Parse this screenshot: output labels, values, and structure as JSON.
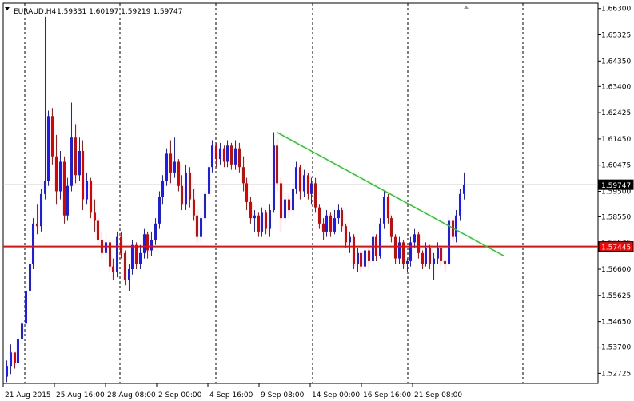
{
  "header": {
    "symbol": "EURAUD,H4",
    "ohlc": "1.59331 1.60197 1.59219 1.59747"
  },
  "icons": {
    "menu": "triangle-down-icon",
    "corner": "triangle-up-icon"
  },
  "price_axis": {
    "ticks": [
      "1.66300",
      "1.65325",
      "1.64350",
      "1.63400",
      "1.62425",
      "1.61450",
      "1.60475",
      "1.59500",
      "1.58550",
      "1.57575",
      "1.56600",
      "1.55625",
      "1.54650",
      "1.53700",
      "1.52725"
    ]
  },
  "time_axis": {
    "labels": [
      "21 Aug 2015",
      "25 Aug 16:00",
      "28 Aug 08:00",
      "2 Sep 00:00",
      "4 Sep 16:00",
      "9 Sep 08:00",
      "14 Sep 00:00",
      "16 Sep 16:00",
      "21 Sep 08:00"
    ]
  },
  "markers": {
    "current_price": "1.59747",
    "support_price": "1.57445"
  },
  "colors": {
    "bull": "#1a1aff",
    "bear": "#e00000",
    "support": "#ff0000",
    "trendline": "#22cc22",
    "grid": "#000000"
  },
  "chart_data": {
    "type": "candlestick",
    "title": "EURAUD,H4",
    "ylim": [
      1.5235,
      1.665
    ],
    "horizontal_lines": [
      {
        "kind": "support",
        "y": 1.57445
      },
      {
        "kind": "current",
        "y": 1.59747
      }
    ],
    "trendline": {
      "from": [
        "9 Sep",
        1.617
      ],
      "to": [
        "23 Sep",
        1.571
      ]
    },
    "candles": [
      [
        1.526,
        1.532,
        1.524,
        1.53
      ],
      [
        1.53,
        1.538,
        1.527,
        1.535
      ],
      [
        1.535,
        1.534,
        1.529,
        1.531
      ],
      [
        1.531,
        1.542,
        1.53,
        1.54
      ],
      [
        1.54,
        1.548,
        1.538,
        1.546
      ],
      [
        1.546,
        1.56,
        1.544,
        1.558
      ],
      [
        1.558,
        1.57,
        1.556,
        1.568
      ],
      [
        1.568,
        1.585,
        1.566,
        1.583
      ],
      [
        1.583,
        1.59,
        1.579,
        1.582
      ],
      [
        1.582,
        1.596,
        1.58,
        1.594
      ],
      [
        1.594,
        1.66,
        1.592,
        1.599
      ],
      [
        1.599,
        1.625,
        1.597,
        1.623
      ],
      [
        1.623,
        1.626,
        1.605,
        1.608
      ],
      [
        1.608,
        1.616,
        1.59,
        1.595
      ],
      [
        1.595,
        1.61,
        1.592,
        1.606
      ],
      [
        1.606,
        1.608,
        1.583,
        1.586
      ],
      [
        1.586,
        1.6,
        1.584,
        1.597
      ],
      [
        1.597,
        1.628,
        1.595,
        1.615
      ],
      [
        1.615,
        1.62,
        1.598,
        1.601
      ],
      [
        1.601,
        1.615,
        1.599,
        1.61
      ],
      [
        1.61,
        1.614,
        1.588,
        1.592
      ],
      [
        1.592,
        1.602,
        1.59,
        1.599
      ],
      [
        1.599,
        1.6,
        1.585,
        1.587
      ],
      [
        1.587,
        1.592,
        1.58,
        1.584
      ],
      [
        1.584,
        1.585,
        1.575,
        1.577
      ],
      [
        1.577,
        1.58,
        1.57,
        1.572
      ],
      [
        1.572,
        1.579,
        1.568,
        1.576
      ],
      [
        1.576,
        1.577,
        1.565,
        1.567
      ],
      [
        1.567,
        1.57,
        1.562,
        1.565
      ],
      [
        1.565,
        1.58,
        1.563,
        1.578
      ],
      [
        1.578,
        1.58,
        1.57,
        1.572
      ],
      [
        1.572,
        1.573,
        1.56,
        1.562
      ],
      [
        1.562,
        1.568,
        1.558,
        1.566
      ],
      [
        1.566,
        1.577,
        1.564,
        1.575
      ],
      [
        1.575,
        1.576,
        1.566,
        1.568
      ],
      [
        1.568,
        1.575,
        1.566,
        1.572
      ],
      [
        1.572,
        1.581,
        1.57,
        1.579
      ],
      [
        1.579,
        1.58,
        1.57,
        1.573
      ],
      [
        1.573,
        1.58,
        1.571,
        1.577
      ],
      [
        1.577,
        1.585,
        1.575,
        1.583
      ],
      [
        1.583,
        1.595,
        1.581,
        1.593
      ],
      [
        1.593,
        1.601,
        1.59,
        1.599
      ],
      [
        1.599,
        1.611,
        1.597,
        1.609
      ],
      [
        1.609,
        1.614,
        1.598,
        1.602
      ],
      [
        1.602,
        1.615,
        1.6,
        1.606
      ],
      [
        1.606,
        1.607,
        1.595,
        1.597
      ],
      [
        1.597,
        1.601,
        1.588,
        1.59
      ],
      [
        1.59,
        1.605,
        1.588,
        1.602
      ],
      [
        1.602,
        1.604,
        1.589,
        1.592
      ],
      [
        1.592,
        1.596,
        1.584,
        1.586
      ],
      [
        1.586,
        1.588,
        1.576,
        1.578
      ],
      [
        1.578,
        1.587,
        1.576,
        1.585
      ],
      [
        1.585,
        1.596,
        1.583,
        1.594
      ],
      [
        1.594,
        1.606,
        1.592,
        1.604
      ],
      [
        1.604,
        1.614,
        1.602,
        1.612
      ],
      [
        1.612,
        1.613,
        1.604,
        1.607
      ],
      [
        1.607,
        1.613,
        1.605,
        1.611
      ],
      [
        1.611,
        1.612,
        1.604,
        1.606
      ],
      [
        1.606,
        1.614,
        1.604,
        1.612
      ],
      [
        1.612,
        1.613,
        1.603,
        1.605
      ],
      [
        1.605,
        1.614,
        1.603,
        1.611
      ],
      [
        1.611,
        1.613,
        1.602,
        1.604
      ],
      [
        1.604,
        1.608,
        1.595,
        1.598
      ],
      [
        1.598,
        1.6,
        1.588,
        1.591
      ],
      [
        1.591,
        1.593,
        1.583,
        1.585
      ],
      [
        1.585,
        1.588,
        1.58,
        1.586
      ],
      [
        1.586,
        1.587,
        1.578,
        1.58
      ],
      [
        1.58,
        1.589,
        1.578,
        1.587
      ],
      [
        1.587,
        1.588,
        1.579,
        1.581
      ],
      [
        1.581,
        1.59,
        1.578,
        1.588
      ],
      [
        1.588,
        1.617,
        1.587,
        1.612
      ],
      [
        1.612,
        1.615,
        1.595,
        1.598
      ],
      [
        1.598,
        1.6,
        1.58,
        1.585
      ],
      [
        1.585,
        1.595,
        1.583,
        1.592
      ],
      [
        1.592,
        1.594,
        1.585,
        1.588
      ],
      [
        1.588,
        1.598,
        1.586,
        1.596
      ],
      [
        1.596,
        1.606,
        1.594,
        1.604
      ],
      [
        1.604,
        1.605,
        1.592,
        1.595
      ],
      [
        1.595,
        1.603,
        1.593,
        1.601
      ],
      [
        1.601,
        1.602,
        1.592,
        1.594
      ],
      [
        1.594,
        1.6,
        1.59,
        1.598
      ],
      [
        1.598,
        1.6,
        1.587,
        1.589
      ],
      [
        1.589,
        1.59,
        1.581,
        1.583
      ],
      [
        1.583,
        1.585,
        1.577,
        1.58
      ],
      [
        1.58,
        1.588,
        1.578,
        1.586
      ],
      [
        1.586,
        1.587,
        1.578,
        1.58
      ],
      [
        1.58,
        1.588,
        1.579,
        1.585
      ],
      [
        1.585,
        1.59,
        1.583,
        1.588
      ],
      [
        1.588,
        1.589,
        1.58,
        1.582
      ],
      [
        1.582,
        1.583,
        1.574,
        1.576
      ],
      [
        1.576,
        1.58,
        1.572,
        1.578
      ],
      [
        1.578,
        1.579,
        1.566,
        1.568
      ],
      [
        1.568,
        1.574,
        1.565,
        1.572
      ],
      [
        1.572,
        1.573,
        1.565,
        1.567
      ],
      [
        1.567,
        1.575,
        1.566,
        1.573
      ],
      [
        1.573,
        1.574,
        1.566,
        1.569
      ],
      [
        1.569,
        1.58,
        1.567,
        1.578
      ],
      [
        1.578,
        1.579,
        1.569,
        1.571
      ],
      [
        1.571,
        1.585,
        1.57,
        1.583
      ],
      [
        1.583,
        1.595,
        1.581,
        1.593
      ],
      [
        1.593,
        1.594,
        1.583,
        1.585
      ],
      [
        1.585,
        1.586,
        1.576,
        1.578
      ],
      [
        1.578,
        1.579,
        1.568,
        1.57
      ],
      [
        1.57,
        1.578,
        1.568,
        1.576
      ],
      [
        1.576,
        1.577,
        1.566,
        1.568
      ],
      [
        1.568,
        1.57,
        1.565,
        1.569
      ],
      [
        1.569,
        1.578,
        1.567,
        1.576
      ],
      [
        1.576,
        1.581,
        1.574,
        1.579
      ],
      [
        1.579,
        1.58,
        1.57,
        1.572
      ],
      [
        1.572,
        1.573,
        1.566,
        1.568
      ],
      [
        1.568,
        1.576,
        1.567,
        1.574
      ],
      [
        1.574,
        1.575,
        1.566,
        1.568
      ],
      [
        1.568,
        1.572,
        1.562,
        1.57
      ],
      [
        1.57,
        1.576,
        1.568,
        1.574
      ],
      [
        1.574,
        1.575,
        1.567,
        1.569
      ],
      [
        1.569,
        1.57,
        1.565,
        1.568
      ],
      [
        1.568,
        1.586,
        1.567,
        1.584
      ],
      [
        1.584,
        1.585,
        1.576,
        1.578
      ],
      [
        1.578,
        1.588,
        1.576,
        1.586
      ],
      [
        1.586,
        1.596,
        1.584,
        1.594
      ],
      [
        1.594,
        1.602,
        1.592,
        1.5975
      ]
    ]
  }
}
